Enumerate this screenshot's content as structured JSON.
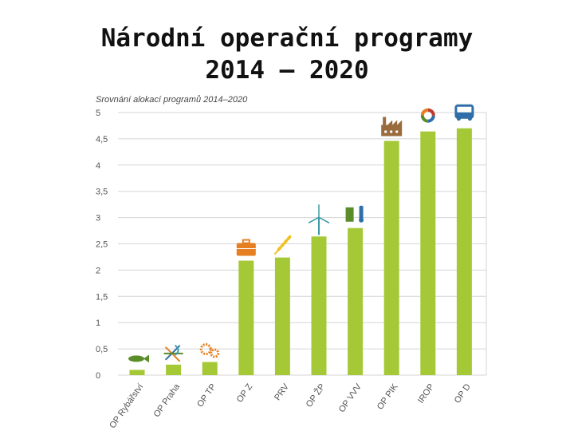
{
  "page": {
    "title_line1": "Národní operační programy",
    "title_line2": "2014 – 2020"
  },
  "colors": {
    "bar": "#a5c936",
    "grid": "#d6d6d6",
    "axis_text": "#555555",
    "title_text": "#444444",
    "icon_brown": "#9a6b3c",
    "icon_blue": "#2f6ea8",
    "icon_teal": "#3a9aa8",
    "icon_orange": "#e67e22",
    "icon_yellow": "#f0c020",
    "icon_green": "#5a8d2a"
  },
  "chart_data": {
    "type": "bar",
    "title": "Srovnání alokací programů 2014–2020",
    "xlabel": "",
    "ylabel": "",
    "ylim": [
      0,
      5
    ],
    "yticks": [
      "0",
      "0,5",
      "1",
      "1,5",
      "2",
      "2,5",
      "3",
      "3,5",
      "4",
      "4,5",
      "5"
    ],
    "grid": true,
    "categories": [
      "OP Rybářství",
      "OP Praha",
      "OP TP",
      "OP Z",
      "PRV",
      "OP ŽP",
      "OP VVV",
      "OP PIK",
      "IROP",
      "OP D"
    ],
    "values": [
      0.1,
      0.2,
      0.25,
      2.18,
      2.24,
      2.64,
      2.8,
      4.46,
      4.64,
      4.7
    ],
    "icons": [
      "fish-icon",
      "arrows-icon",
      "gears-icon",
      "briefcase-icon",
      "wheat-icon",
      "wind-turbine-icon",
      "book-flask-icon",
      "factory-icon",
      "ring-icon",
      "bus-icon"
    ]
  }
}
